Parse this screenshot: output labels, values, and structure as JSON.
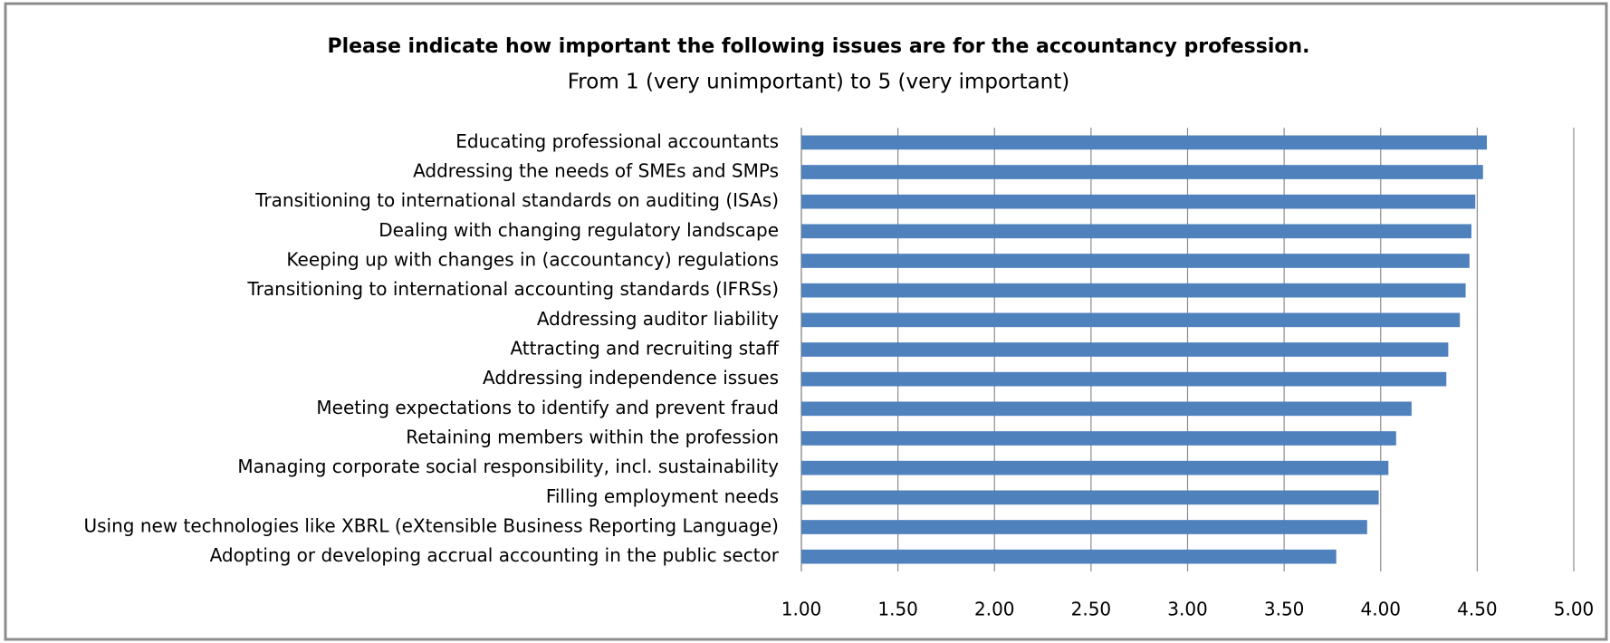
{
  "chart_data": {
    "type": "bar",
    "orientation": "horizontal",
    "title": "Please indicate how important the following issues are for the accountancy profession.",
    "subtitle": "From 1 (very unimportant) to 5 (very important)",
    "categories": [
      "Educating professional accountants",
      "Addressing the needs of SMEs and SMPs",
      "Transitioning to international standards on auditing (ISAs)",
      "Dealing with changing regulatory landscape",
      "Keeping up with changes in (accountancy) regulations",
      "Transitioning to international accounting standards (IFRSs)",
      "Addressing auditor liability",
      "Attracting and recruiting staff",
      "Addressing independence issues",
      "Meeting expectations to identify and prevent fraud",
      "Retaining members within the profession",
      "Managing corporate social responsibility, incl. sustainability",
      "Filling employment needs",
      "Using new technologies like XBRL (eXtensible Business Reporting Language)",
      "Adopting or developing accrual accounting in the public sector"
    ],
    "values": [
      4.55,
      4.53,
      4.49,
      4.47,
      4.46,
      4.44,
      4.41,
      4.35,
      4.34,
      4.16,
      4.08,
      4.04,
      3.99,
      3.93,
      3.77
    ],
    "color": "#4f81bd",
    "xlim": [
      1,
      5
    ],
    "xticks": [
      {
        "value": 1,
        "label": "1.00"
      },
      {
        "value": 1.5,
        "label": "1.50"
      },
      {
        "value": 2,
        "label": "2.00"
      },
      {
        "value": 2.5,
        "label": "2.50"
      },
      {
        "value": 3,
        "label": "3.00"
      },
      {
        "value": 3.5,
        "label": "3.50"
      },
      {
        "value": 4,
        "label": "4.00"
      },
      {
        "value": 4.5,
        "label": "4.50"
      },
      {
        "value": 5,
        "label": "5.00"
      }
    ],
    "grid": true
  }
}
